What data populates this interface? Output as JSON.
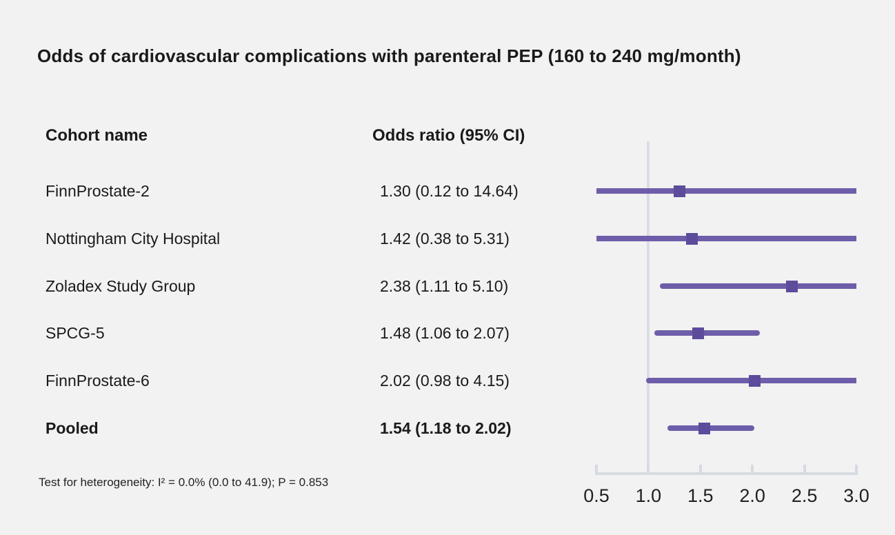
{
  "title": "Odds of cardiovascular complications with parenteral PEP (160 to 240 mg/month)",
  "columns": {
    "cohort": "Cohort name",
    "odds": "Odds ratio (95% CI)"
  },
  "footer": "Test for heterogeneity: I² = 0.0% (0.0 to 41.9); P = 0.853",
  "colors": {
    "background": "#f2f2f2",
    "text": "#1a1a1a",
    "ci_line": "#6e5ea9",
    "marker": "#5d4c9b",
    "axis": "#d6dae1",
    "reference_line": "#d9dde4"
  },
  "chart_data": {
    "type": "forest",
    "title": "Odds of cardiovascular complications with parenteral PEP (160 to 240 mg/month)",
    "xlim": [
      0.5,
      3.0
    ],
    "x_ticks": [
      0.5,
      1.0,
      1.5,
      2.0,
      2.5,
      3.0
    ],
    "reference_line": 1.0,
    "legend_position": "none",
    "grid": false,
    "rows": [
      {
        "label": "FinnProstate-2",
        "display": "1.30 (0.12 to 14.64)",
        "estimate": 1.3,
        "ci_low": 0.12,
        "ci_high": 14.64,
        "pooled": false
      },
      {
        "label": "Nottingham City Hospital",
        "display": "1.42 (0.38 to 5.31)",
        "estimate": 1.42,
        "ci_low": 0.38,
        "ci_high": 5.31,
        "pooled": false
      },
      {
        "label": "Zoladex Study Group",
        "display": "2.38 (1.11 to 5.10)",
        "estimate": 2.38,
        "ci_low": 1.11,
        "ci_high": 5.1,
        "pooled": false
      },
      {
        "label": "SPCG-5",
        "display": "1.48 (1.06 to 2.07)",
        "estimate": 1.48,
        "ci_low": 1.06,
        "ci_high": 2.07,
        "pooled": false
      },
      {
        "label": "FinnProstate-6",
        "display": "2.02 (0.98 to 4.15)",
        "estimate": 2.02,
        "ci_low": 0.98,
        "ci_high": 4.15,
        "pooled": false
      },
      {
        "label": "Pooled",
        "display": "1.54 (1.18 to 2.02)",
        "estimate": 1.54,
        "ci_low": 1.18,
        "ci_high": 2.02,
        "pooled": true
      }
    ]
  }
}
